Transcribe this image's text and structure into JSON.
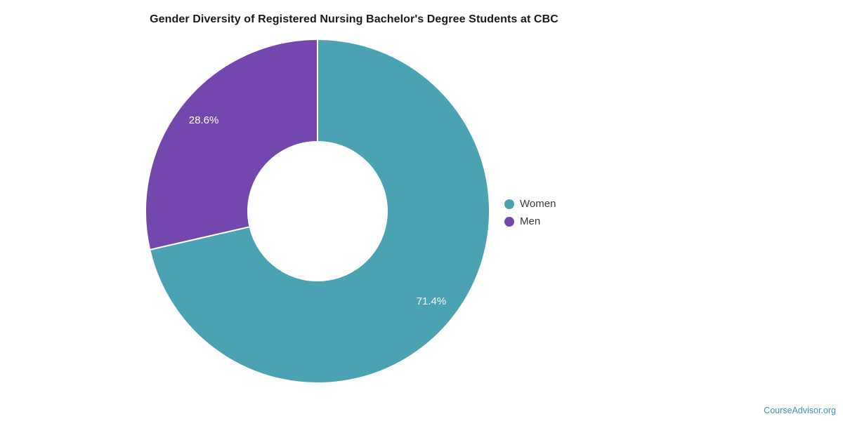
{
  "chart_data": {
    "type": "pie",
    "donut": true,
    "title": "Gender Diversity of Registered Nursing Bachelor's Degree Students at CBC",
    "categories": [
      "Women",
      "Men"
    ],
    "values": [
      71.4,
      28.6
    ],
    "slice_labels": [
      "71.4%",
      "28.6%"
    ],
    "colors": [
      "#4aa2b2",
      "#7347ae"
    ],
    "slice_label_color": "#ffffff",
    "start_angle_deg": 0,
    "direction": "clockwise",
    "legend_position": "right",
    "grid": "off"
  },
  "colors": {
    "background": "#ffffff",
    "title_text": "#1a1a1a",
    "legend_text": "#3a3a3a",
    "slice_divider": "#ffffff"
  },
  "footer": {
    "attribution": "CourseAdvisor.org",
    "attribution_color": "#4191ac"
  }
}
